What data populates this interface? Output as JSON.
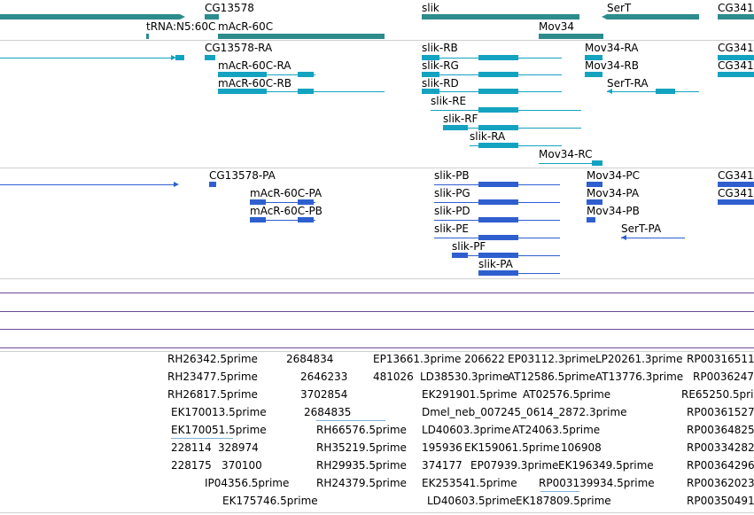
{
  "colors": {
    "gene": "#2e8b8b",
    "rna": "#13a3c1",
    "protein": "#2f5fcf",
    "est": "#7fb3d5",
    "track_line": "#6a4c93",
    "separator": "#cfcfcf"
  },
  "genes": {
    "labels": [
      "CG13578",
      "slik",
      "SerT",
      "CG341",
      "tRNA:N5:60C",
      "mAcR-60C",
      "Mov34"
    ]
  },
  "transcripts": {
    "labels": [
      "CG13578-RA",
      "mAcR-60C-RA",
      "mAcR-60C-RB",
      "slik-RB",
      "slik-RG",
      "slik-RD",
      "slik-RE",
      "slik-RF",
      "slik-RA",
      "Mov34-RA",
      "Mov34-RB",
      "SerT-RA",
      "Mov34-RC",
      "CG341",
      "CG341"
    ]
  },
  "proteins": {
    "labels": [
      "CG13578-PA",
      "mAcR-60C-PA",
      "mAcR-60C-PB",
      "slik-PB",
      "slik-PG",
      "slik-PD",
      "slik-PE",
      "slik-PF",
      "slik-PA",
      "Mov34-PC",
      "Mov34-PA",
      "Mov34-PB",
      "SerT-PA",
      "CG341",
      "CG341"
    ]
  },
  "ests": {
    "labels": [
      "RH26342.5prime",
      "RH23477.5prime",
      "RH26817.5prime",
      "EK170013.5prime",
      "EK170051.5prime",
      "228114",
      "328974",
      "228175",
      "370100",
      "IP04356.5prime",
      "EK175746.5prime",
      "2684834",
      "2646233",
      "3702854",
      "2684835",
      "RH66576.5prime",
      "RH35219.5prime",
      "RH29935.5prime",
      "RH24379.5prime",
      "EP13661.3prime",
      "481026",
      "LD38530.3prime",
      "EK291901.5prime",
      "Dmel_neb_007245_0614_2872.3prime",
      "LD40603.3prime",
      "195936",
      "374177",
      "EK253541.5prime",
      "LD40603.5prime",
      "206622",
      "EP03112.3prime",
      "AT12586.5prime",
      "AT02576.5prime",
      "AT24063.5prime",
      "EK159061.5prime",
      "EP07939.3prime",
      "106908",
      "EK196349.5prime",
      "RP003139934.5prime",
      "EK187809.5prime",
      "LP20261.3prime",
      "AT13776.3prime",
      "RP00316511",
      "RP0036247",
      "RE65250.5pri",
      "RP00361527",
      "RP00364825",
      "RP00334282",
      "RP00364296",
      "RP00362023",
      "RP00350491"
    ]
  }
}
